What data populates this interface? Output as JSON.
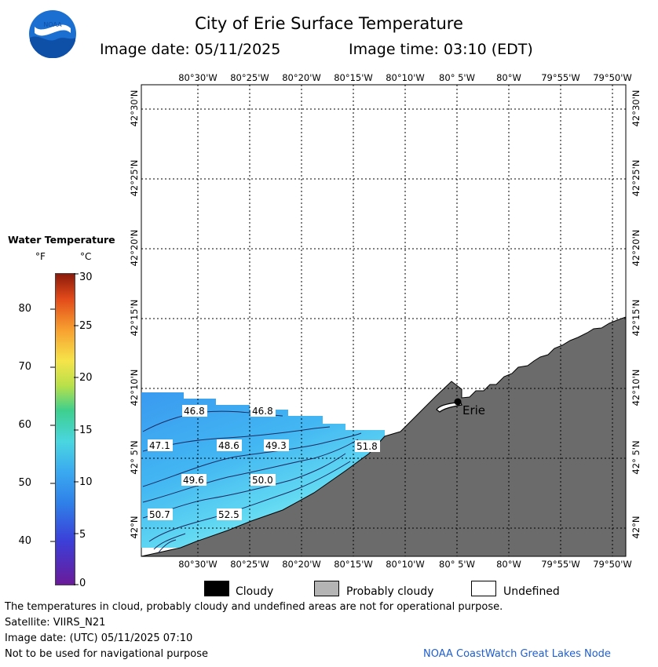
{
  "header": {
    "title": "City of Erie Surface Temperature",
    "date_label": "Image date: 05/11/2025",
    "time_label": "Image time: 03:10 (EDT)"
  },
  "logo": {
    "text": "NOAA"
  },
  "map": {
    "lon_labels": [
      "80°30'W",
      "80°25'W",
      "80°20'W",
      "80°15'W",
      "80°10'W",
      "80° 5'W",
      "80°W",
      "79°55'W",
      "79°50'W"
    ],
    "lat_labels": [
      "42°30'N",
      "42°25'N",
      "42°20'N",
      "42°15'N",
      "42°10'N",
      "42° 5'N",
      "42°N"
    ],
    "city": "Erie",
    "contour_labels": [
      "46.8",
      "46.8",
      "47.1",
      "48.6",
      "49.3",
      "51.8",
      "49.6",
      "50.0",
      "50.7",
      "52.5"
    ],
    "colors": {
      "land": "#6b6b6b",
      "water_deep": "#3a9af0",
      "water_mid": "#4cc4f0",
      "water_warm": "#7eeaf4",
      "grid": "#000000"
    }
  },
  "legend": {
    "title": "Water Temperature",
    "unit_f": "°F",
    "unit_c": "°C",
    "f_ticks": [
      "80",
      "70",
      "60",
      "50",
      "40"
    ],
    "c_ticks": [
      "30",
      "25",
      "20",
      "15",
      "10",
      "5",
      "0"
    ],
    "colors": [
      "#6a1b9a",
      "#2f5fe0",
      "#3aa0f0",
      "#4ad0e8",
      "#3ecf8e",
      "#b8e04a",
      "#f5e44a",
      "#f7a030",
      "#e24a1a",
      "#8b1a0a"
    ]
  },
  "key": {
    "items": [
      {
        "label": "Cloudy",
        "color": "#000000"
      },
      {
        "label": "Probably cloudy",
        "color": "#b4b4b4"
      },
      {
        "label": "Undefined",
        "color": "#ffffff"
      }
    ]
  },
  "footer": {
    "disclaimer": "The temperatures in cloud, probably cloudy and undefined areas are not for operational purpose.",
    "satellite": "Satellite: VIIRS_N21",
    "image_date_utc": "Image date: (UTC) 05/11/2025  07:10",
    "nav_warning": "Not to be used for navigational purpose",
    "credit": "NOAA CoastWatch Great Lakes Node"
  }
}
